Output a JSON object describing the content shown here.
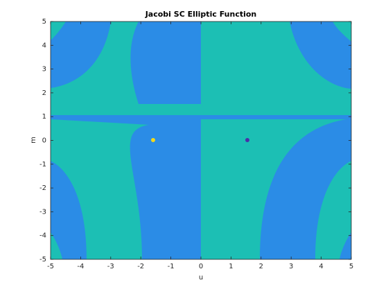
{
  "chart_data": {
    "type": "filled_contour",
    "title": "Jacobi SC Elliptic Function",
    "xlabel": "u",
    "ylabel": "m",
    "xlim": [
      -5,
      5
    ],
    "ylim": [
      -5,
      5
    ],
    "xticks": [
      -5,
      -4,
      -3,
      -2,
      -1,
      0,
      1,
      2,
      3,
      4,
      5
    ],
    "yticks": [
      -5,
      -4,
      -3,
      -2,
      -1,
      0,
      1,
      2,
      3,
      4,
      5
    ],
    "colors": [
      "#2b8ce6",
      "#1cbfb4"
    ]
  }
}
